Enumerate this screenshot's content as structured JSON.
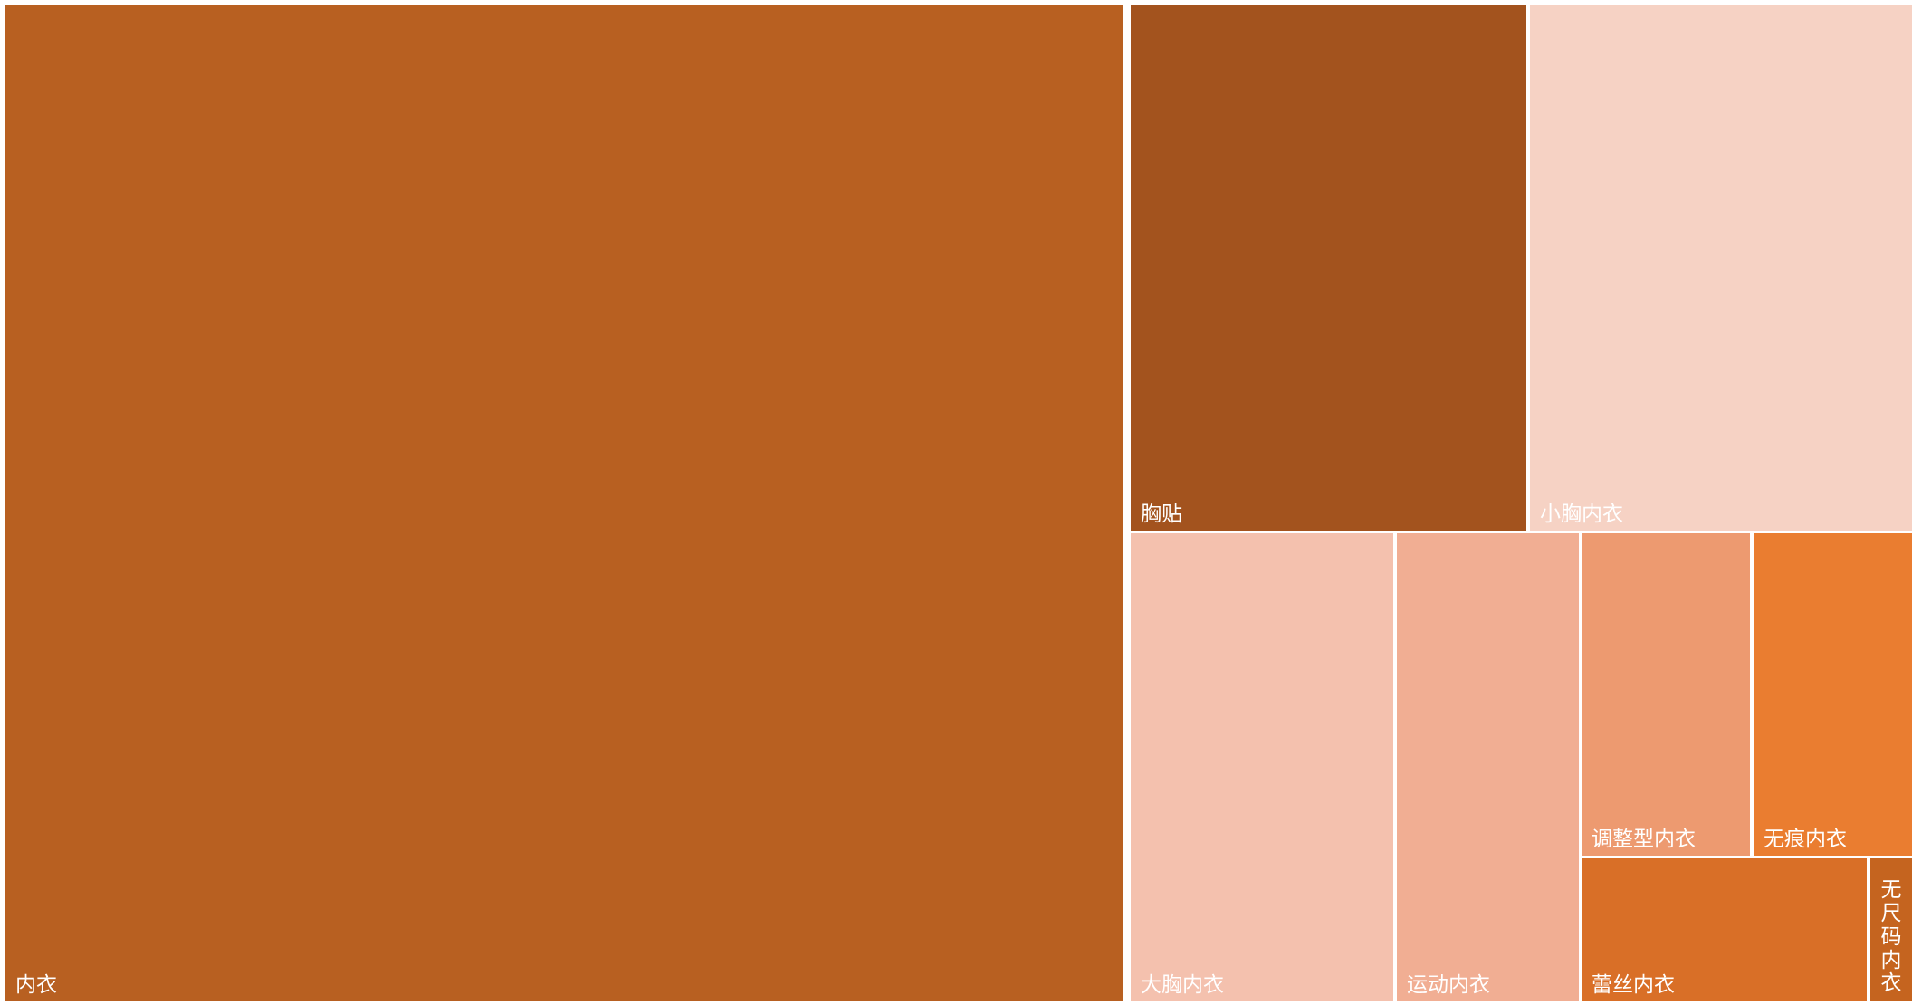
{
  "chart_data": {
    "type": "treemap",
    "title": "",
    "colors": {
      "background": "#ffffff",
      "border": "#ffffff",
      "label": "#ffffff"
    },
    "items": [
      {
        "name": "内衣",
        "value": 68.0,
        "color": "#B86021",
        "label_orientation": "horizontal"
      },
      {
        "name": "胸贴",
        "value": 7.8,
        "color": "#A3531E",
        "label_orientation": "horizontal"
      },
      {
        "name": "小胸内衣",
        "value": 7.4,
        "color": "#F6D2C4",
        "label_orientation": "horizontal"
      },
      {
        "name": "大胸内衣",
        "value": 4.5,
        "color": "#F4C1AE",
        "label_orientation": "horizontal"
      },
      {
        "name": "运动内衣",
        "value": 3.2,
        "color": "#F1AE93",
        "label_orientation": "horizontal"
      },
      {
        "name": "调整型内衣",
        "value": 2.2,
        "color": "#ED9A70",
        "label_orientation": "horizontal"
      },
      {
        "name": "无痕内衣",
        "value": 2.1,
        "color": "#EA7D30",
        "label_orientation": "horizontal"
      },
      {
        "name": "蕾丝内衣",
        "value": 1.7,
        "color": "#D96F27",
        "label_orientation": "horizontal"
      },
      {
        "name": "无尺码内衣",
        "value": 0.4,
        "color": "#C5641F",
        "label_orientation": "vertical"
      }
    ]
  }
}
